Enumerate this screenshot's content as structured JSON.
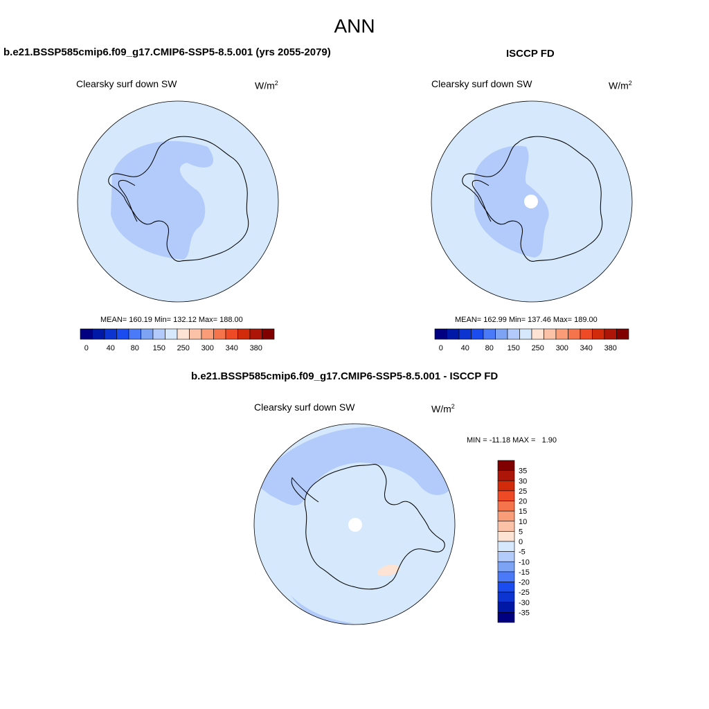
{
  "main_title": "ANN",
  "colors": {
    "land_mask": "#d6e8fb",
    "ocean_light": "#d6e8fb",
    "band_light_blue": "#b3cbfa",
    "band_mid_blue": "#a9c3f6",
    "outline": "#000000",
    "missing": "#ffffff",
    "pos_small": "#fde3d3"
  },
  "panels": [
    {
      "id": "model",
      "title": "b.e21.BSSP585cmip6.f09_g17.CMIP6-SSP5-8.5.001 (yrs 2055-2079)",
      "variable": "Clearsky surf down SW",
      "units_base": "W/m",
      "units_sup": "2",
      "stats_text": "MEAN= 160.19  Min= 132.12  Max= 188.00"
    },
    {
      "id": "obs",
      "title": "ISCCP FD",
      "variable": "Clearsky surf down SW",
      "units_base": "W/m",
      "units_sup": "2",
      "stats_text": "MEAN= 162.99  Min= 137.46  Max= 189.00"
    },
    {
      "id": "diff",
      "title": "b.e21.BSSP585cmip6.f09_g17.CMIP6-SSP5-8.5.001 - ISCCP FD",
      "variable": "Clearsky surf down SW",
      "units_base": "W/m",
      "units_sup": "2",
      "stats_text": "MIN = -11.18 MAX =   1.90"
    }
  ],
  "colorbar_top": {
    "colors": [
      "#000080",
      "#0018a6",
      "#0b34d0",
      "#1a4cf0",
      "#4a7af8",
      "#7da3f5",
      "#b3cbfa",
      "#d6e8fb",
      "#fde3d3",
      "#fbc2a8",
      "#f99c78",
      "#f6744c",
      "#ee4a25",
      "#d22b0c",
      "#ac1507",
      "#800000"
    ],
    "labels": [
      "0",
      "40",
      "80",
      "150",
      "250",
      "300",
      "340",
      "380"
    ]
  },
  "colorbar_diff": {
    "colors": [
      "#800000",
      "#ac1507",
      "#d22b0c",
      "#ee4a25",
      "#f6744c",
      "#f99c78",
      "#fbc2a8",
      "#fde3d3",
      "#d6e8fb",
      "#b3cbfa",
      "#7da3f5",
      "#4a7af8",
      "#1a4cf0",
      "#0b34d0",
      "#0018a6",
      "#000080"
    ],
    "labels": [
      "35",
      "30",
      "25",
      "20",
      "15",
      "10",
      "5",
      "0",
      "-5",
      "-10",
      "-15",
      "-20",
      "-25",
      "-30",
      "-35"
    ]
  }
}
